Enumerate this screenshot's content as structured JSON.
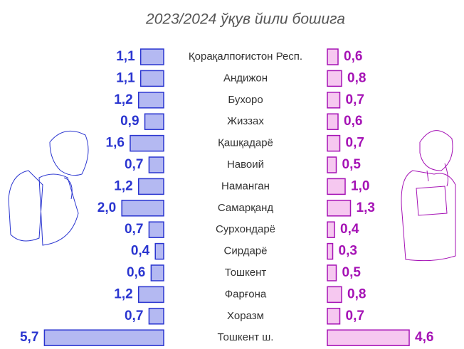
{
  "chart_data": {
    "type": "bar",
    "title": "2023/2024 ўқув йили бошига",
    "categories": [
      "Қорақалпоғистон Респ.",
      "Андижон",
      "Бухоро",
      "Жиззах",
      "Қашқадарё",
      "Навоий",
      "Наманган",
      "Самарқанд",
      "Сурхондарё",
      "Сирдарё",
      "Тошкент",
      "Фарғона",
      "Хоразм",
      "Тошкент ш."
    ],
    "series": [
      {
        "color": "#2a35d0",
        "values": [
          1.1,
          1.1,
          1.2,
          0.9,
          1.6,
          0.7,
          1.2,
          2.0,
          0.7,
          0.4,
          0.6,
          1.2,
          0.7,
          5.7
        ],
        "value_labels": [
          "1,1",
          "1,1",
          "1,2",
          "0,9",
          "1,6",
          "0,7",
          "1,2",
          "2,0",
          "0,7",
          "0,4",
          "0,6",
          "1,2",
          "0,7",
          "5,7"
        ]
      },
      {
        "color": "#a512b5",
        "values": [
          0.6,
          0.8,
          0.7,
          0.6,
          0.7,
          0.5,
          1.0,
          1.3,
          0.4,
          0.3,
          0.5,
          0.8,
          0.7,
          4.6
        ],
        "value_labels": [
          "0,6",
          "0,8",
          "0,7",
          "0,6",
          "0,7",
          "0,5",
          "1,0",
          "1,3",
          "0,4",
          "0,3",
          "0,5",
          "0,8",
          "0,7",
          "4,6"
        ]
      }
    ]
  }
}
